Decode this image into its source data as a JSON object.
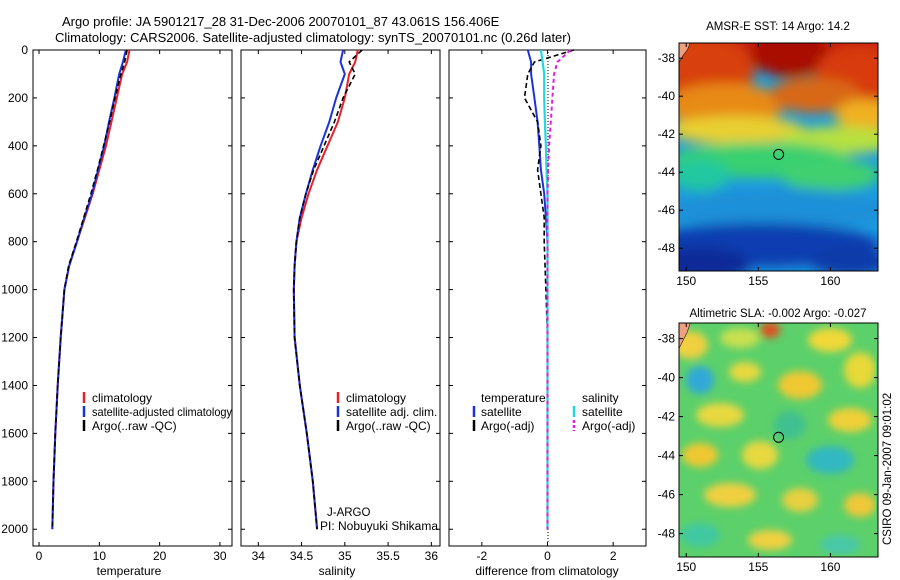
{
  "header": {
    "title_line1": "Argo profile: JA 5901217_28 31-Dec-2006 20070101_87 43.061S 156.406E",
    "title_line2": "Climatology: CARS2006. Satellite-adjusted climatology: synTS_20070101.nc (0.26d later)"
  },
  "colors": {
    "climatology": "#e8202a",
    "satellite": "#1a33d9",
    "argo": "#000000",
    "salinity_satellite": "#22d8e0",
    "salinity_argo": "#e020e0"
  },
  "chart_data": [
    {
      "type": "line",
      "name": "temperature-profile",
      "xlabel": "temperature",
      "xlim": [
        -1,
        32
      ],
      "ylim": [
        0,
        2070
      ],
      "y_inverted": true,
      "xticks": [
        0,
        10,
        20,
        30
      ],
      "yticks": [
        0,
        200,
        400,
        600,
        800,
        1000,
        1200,
        1400,
        1600,
        1800,
        2000
      ],
      "legend": [
        "climatology",
        "satellite-adjusted climatology",
        "Argo(..raw -QC)"
      ],
      "series": [
        {
          "name": "climatology",
          "x": [
            15.0,
            14.6,
            13.8,
            12.9,
            12.0,
            11.1,
            10.0,
            8.9,
            7.6,
            6.3,
            5.0,
            4.2,
            3.6,
            3.1,
            2.7,
            2.4,
            2.2
          ],
          "y": [
            0,
            50,
            100,
            200,
            300,
            400,
            500,
            600,
            700,
            800,
            900,
            1000,
            1200,
            1400,
            1600,
            1800,
            2000
          ]
        },
        {
          "name": "satellite-adjusted climatology",
          "x": [
            14.4,
            13.9,
            13.3,
            12.5,
            11.6,
            10.8,
            9.8,
            8.8,
            7.5,
            6.3,
            5.0,
            4.2,
            3.6,
            3.1,
            2.7,
            2.4,
            2.2
          ],
          "y": [
            0,
            50,
            100,
            200,
            300,
            400,
            500,
            600,
            700,
            800,
            900,
            1000,
            1200,
            1400,
            1600,
            1800,
            2000
          ]
        },
        {
          "name": "Argo(..raw -QC)",
          "x": [
            14.6,
            14.2,
            13.6,
            12.6,
            11.7,
            10.7,
            9.7,
            8.6,
            7.4,
            6.2,
            4.9,
            4.2,
            3.6,
            3.1,
            2.7,
            2.4,
            2.2
          ],
          "y": [
            0,
            50,
            100,
            200,
            300,
            400,
            500,
            600,
            700,
            800,
            900,
            1000,
            1200,
            1400,
            1600,
            1800,
            2000
          ]
        }
      ]
    },
    {
      "type": "line",
      "name": "salinity-profile",
      "xlabel": "salinity",
      "xlim": [
        33.8,
        36.1
      ],
      "ylim": [
        0,
        2070
      ],
      "y_inverted": true,
      "xticks": [
        34,
        34.5,
        35,
        35.5,
        36
      ],
      "legend": [
        "climatology",
        "satellite adj. clim.",
        "Argo(..raw -QC)"
      ],
      "annotation": [
        "J-ARGO",
        "PI: Nobuyuki Shikama"
      ],
      "series": [
        {
          "name": "climatology",
          "x": [
            35.15,
            35.12,
            35.05,
            35.0,
            34.92,
            34.8,
            34.68,
            34.58,
            34.5,
            34.44,
            34.42,
            34.41,
            34.42,
            34.48,
            34.56,
            34.63,
            34.68
          ],
          "y": [
            0,
            50,
            100,
            200,
            300,
            400,
            500,
            600,
            700,
            800,
            900,
            1000,
            1200,
            1400,
            1600,
            1800,
            2000
          ]
        },
        {
          "name": "satellite adj. clim.",
          "x": [
            34.98,
            34.95,
            35.0,
            34.9,
            34.82,
            34.72,
            34.63,
            34.55,
            34.48,
            34.44,
            34.42,
            34.41,
            34.42,
            34.48,
            34.56,
            34.63,
            34.68
          ],
          "y": [
            0,
            50,
            100,
            200,
            300,
            400,
            500,
            600,
            700,
            800,
            900,
            1000,
            1200,
            1400,
            1600,
            1800,
            2000
          ]
        },
        {
          "name": "Argo(..raw -QC)",
          "x": [
            35.2,
            35.05,
            35.12,
            34.98,
            34.88,
            34.76,
            34.64,
            34.55,
            34.48,
            34.44,
            34.42,
            34.41,
            34.42,
            34.48,
            34.56,
            34.63,
            34.68
          ],
          "y": [
            0,
            50,
            100,
            200,
            300,
            400,
            500,
            600,
            700,
            800,
            900,
            1000,
            1200,
            1400,
            1600,
            1800,
            2000
          ]
        }
      ]
    },
    {
      "type": "line",
      "name": "difference-profile",
      "xlabel": "difference from climatology",
      "xlim": [
        -3,
        3
      ],
      "ylim": [
        0,
        2070
      ],
      "y_inverted": true,
      "xticks": [
        -2,
        0,
        2
      ],
      "legend": [
        "temperature",
        "satellite",
        "Argo(-adj)",
        "salinity",
        "satellite",
        "Argo(-adj)"
      ],
      "series": [
        {
          "name": "temperature satellite",
          "x": [
            -0.6,
            -0.5,
            -0.5,
            -0.4,
            -0.3,
            -0.25,
            -0.2,
            -0.1,
            -0.05,
            0,
            0,
            0,
            0,
            0,
            0
          ],
          "y": [
            0,
            50,
            100,
            200,
            300,
            400,
            500,
            600,
            700,
            800,
            1000,
            1200,
            1500,
            1800,
            2000
          ]
        },
        {
          "name": "temperature Argo(-adj)",
          "x": [
            0.8,
            -0.4,
            -0.6,
            -0.7,
            -0.3,
            -0.2,
            -0.3,
            -0.2,
            -0.1,
            -0.1,
            -0.05,
            0,
            0,
            0,
            0
          ],
          "y": [
            0,
            50,
            100,
            200,
            300,
            400,
            500,
            600,
            700,
            800,
            1000,
            1200,
            1500,
            1800,
            2000
          ]
        },
        {
          "name": "salinity satellite",
          "x": [
            -0.2,
            -0.15,
            -0.1,
            -0.1,
            -0.08,
            -0.05,
            -0.03,
            0,
            0,
            0,
            0,
            0,
            0,
            0,
            0
          ],
          "y": [
            0,
            50,
            100,
            200,
            300,
            400,
            500,
            600,
            700,
            800,
            1000,
            1200,
            1500,
            1800,
            2000
          ]
        },
        {
          "name": "salinity Argo(-adj)",
          "x": [
            0.7,
            0.3,
            0.2,
            0.15,
            0.1,
            0.05,
            0.02,
            0,
            0,
            0,
            0,
            0,
            0,
            0,
            0
          ],
          "y": [
            0,
            50,
            100,
            200,
            300,
            400,
            500,
            600,
            700,
            800,
            1000,
            1200,
            1500,
            1800,
            2000
          ]
        }
      ]
    },
    {
      "type": "heatmap",
      "name": "sst-map",
      "title": "AMSR-E SST: 14 Argo: 14.2",
      "xlim": [
        149.5,
        163.3
      ],
      "ylim": [
        -49.2,
        -37.2
      ],
      "xticks": [
        150,
        155,
        160
      ],
      "yticks": [
        -38,
        -40,
        -42,
        -44,
        -46,
        -48
      ],
      "marker": {
        "lon": 156.406,
        "lat": -43.061
      }
    },
    {
      "type": "heatmap",
      "name": "sla-map",
      "title": "Altimetric SLA: -0.002 Argo: -0.027",
      "xlim": [
        149.5,
        163.3
      ],
      "ylim": [
        -49.2,
        -37.2
      ],
      "xticks": [
        150,
        155,
        160
      ],
      "yticks": [
        -38,
        -40,
        -42,
        -44,
        -46,
        -48
      ],
      "marker": {
        "lon": 156.406,
        "lat": -43.061
      }
    }
  ],
  "footer": {
    "stamp": "CSIRO 09-Jan-2007 09:01:02"
  }
}
